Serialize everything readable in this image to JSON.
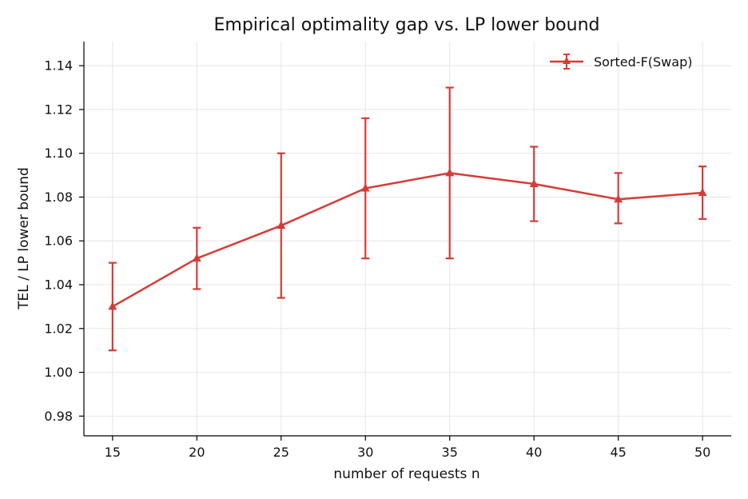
{
  "chart_data": {
    "type": "line",
    "title": "Empirical optimality gap vs. LP lower bound",
    "xlabel": "number of requests  n",
    "ylabel": "TEL / LP lower bound",
    "x": [
      15,
      20,
      25,
      30,
      35,
      40,
      45,
      50
    ],
    "xlim": [
      13.3,
      51.7
    ],
    "ylim": [
      0.971,
      1.151
    ],
    "xticks": [
      15,
      20,
      25,
      30,
      35,
      40,
      45,
      50
    ],
    "yticks": [
      0.98,
      1.0,
      1.02,
      1.04,
      1.06,
      1.08,
      1.1,
      1.12,
      1.14
    ],
    "grid": true,
    "legend_position": "top-right",
    "series": [
      {
        "name": "Sorted-F(Swap)",
        "color": "#d73b36",
        "marker": "triangle",
        "values": [
          1.03,
          1.052,
          1.067,
          1.084,
          1.091,
          1.086,
          1.079,
          1.082
        ],
        "err_low": [
          1.01,
          1.038,
          1.034,
          1.052,
          1.052,
          1.069,
          1.068,
          1.07
        ],
        "err_high": [
          1.05,
          1.066,
          1.1,
          1.116,
          1.13,
          1.103,
          1.091,
          1.094
        ]
      }
    ]
  }
}
